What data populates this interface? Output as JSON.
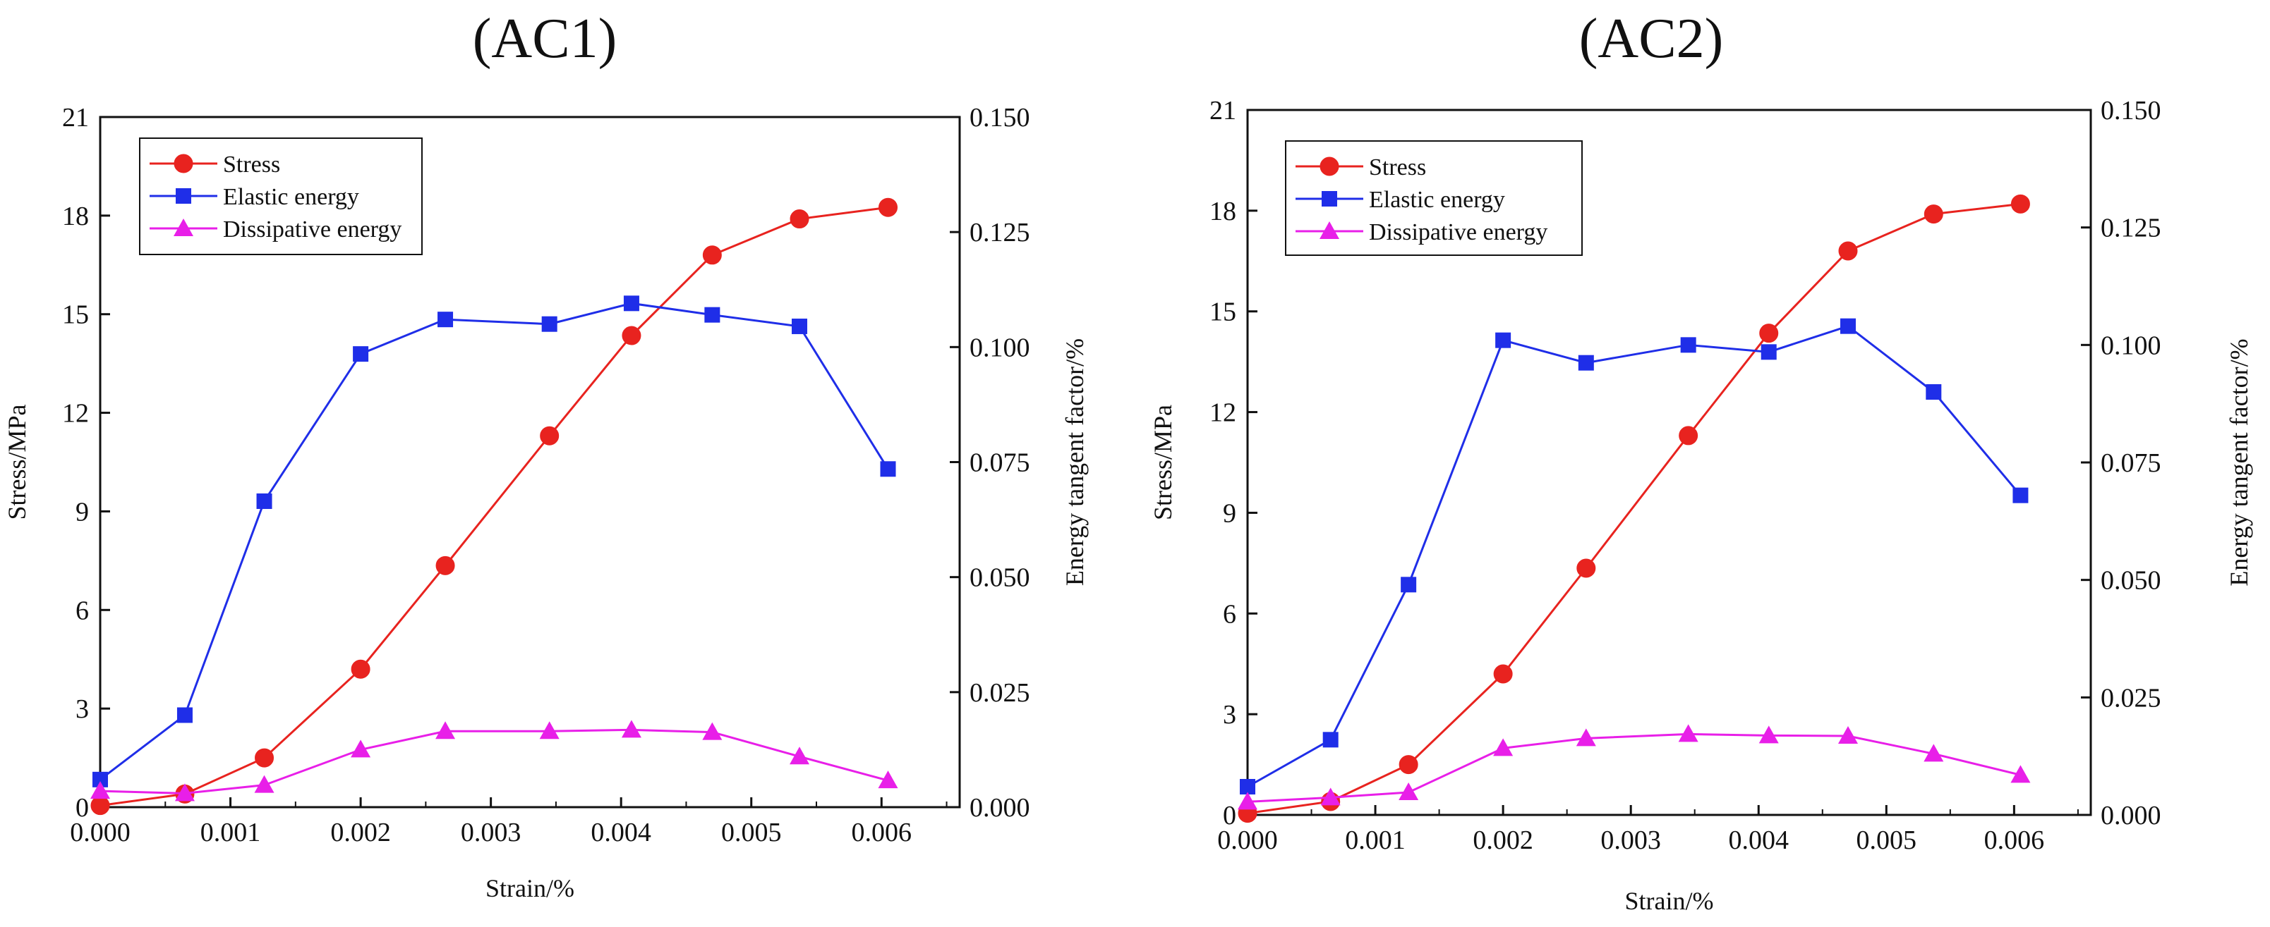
{
  "chart_data": [
    {
      "type": "line",
      "title": "(AC1)",
      "xlabel": "Strain/%",
      "ylabel": "Stress/MPa",
      "y2label": "Energy tangent factor/%",
      "xlim": [
        0,
        0.0066
      ],
      "ylim": [
        0,
        21
      ],
      "y2lim": [
        0,
        0.15
      ],
      "xticks": [
        "0.000",
        "0.001",
        "0.002",
        "0.003",
        "0.004",
        "0.005",
        "0.006"
      ],
      "yticks": [
        "0",
        "3",
        "6",
        "9",
        "12",
        "15",
        "18",
        "21"
      ],
      "y2ticks": [
        "0.000",
        "0.025",
        "0.050",
        "0.075",
        "0.100",
        "0.125",
        "0.150"
      ],
      "legend_position": "top-left",
      "series": [
        {
          "name": "Stress",
          "axis": "left",
          "color": "#e8231f",
          "marker": "circle",
          "x": [
            0,
            0.00065,
            0.00126,
            0.002,
            0.00265,
            0.00345,
            0.00408,
            0.0047,
            0.00537,
            0.00605
          ],
          "values": [
            0.05,
            0.4,
            1.5,
            4.2,
            7.35,
            11.3,
            14.35,
            16.8,
            17.9,
            18.25
          ]
        },
        {
          "name": "Elastic energy",
          "axis": "right",
          "color": "#1f2ee8",
          "marker": "square",
          "x": [
            0,
            0.00065,
            0.00126,
            0.002,
            0.00265,
            0.00345,
            0.00408,
            0.0047,
            0.00537,
            0.00605
          ],
          "values": [
            0.006,
            0.02,
            0.0665,
            0.0985,
            0.106,
            0.105,
            0.1095,
            0.107,
            0.1045,
            0.0735
          ]
        },
        {
          "name": "Dissipative energy",
          "axis": "right",
          "color": "#e81fe8",
          "marker": "triangle",
          "x": [
            0,
            0.00065,
            0.00126,
            0.002,
            0.00265,
            0.00345,
            0.00408,
            0.0047,
            0.00537,
            0.00605
          ],
          "values": [
            0.0035,
            0.003,
            0.0048,
            0.0125,
            0.0165,
            0.0165,
            0.0168,
            0.0163,
            0.011,
            0.0058
          ]
        }
      ]
    },
    {
      "type": "line",
      "title": "(AC2)",
      "xlabel": "Strain/%",
      "ylabel": "Stress/MPa",
      "y2label": "Energy tangent factor/%",
      "xlim": [
        0,
        0.0066
      ],
      "ylim": [
        0,
        21
      ],
      "y2lim": [
        0,
        0.15
      ],
      "xticks": [
        "0.000",
        "0.001",
        "0.002",
        "0.003",
        "0.004",
        "0.005",
        "0.006"
      ],
      "yticks": [
        "0",
        "3",
        "6",
        "9",
        "12",
        "15",
        "18",
        "21"
      ],
      "y2ticks": [
        "0.000",
        "0.025",
        "0.050",
        "0.075",
        "0.100",
        "0.125",
        "0.150"
      ],
      "legend_position": "top-left",
      "series": [
        {
          "name": "Stress",
          "axis": "left",
          "color": "#e8231f",
          "marker": "circle",
          "x": [
            0,
            0.00065,
            0.00126,
            0.002,
            0.00265,
            0.00345,
            0.00408,
            0.0047,
            0.00537,
            0.00605
          ],
          "values": [
            0.05,
            0.4,
            1.5,
            4.2,
            7.35,
            11.3,
            14.35,
            16.8,
            17.9,
            18.2
          ]
        },
        {
          "name": "Elastic energy",
          "axis": "right",
          "color": "#1f2ee8",
          "marker": "square",
          "x": [
            0,
            0.00065,
            0.00126,
            0.002,
            0.00265,
            0.00345,
            0.00408,
            0.0047,
            0.00537,
            0.00605
          ],
          "values": [
            0.006,
            0.016,
            0.049,
            0.101,
            0.0962,
            0.1,
            0.0985,
            0.104,
            0.09,
            0.068
          ]
        },
        {
          "name": "Dissipative energy",
          "axis": "right",
          "color": "#e81fe8",
          "marker": "triangle",
          "x": [
            0,
            0.00065,
            0.00126,
            0.002,
            0.00265,
            0.00345,
            0.00408,
            0.0047,
            0.00537,
            0.00605
          ],
          "values": [
            0.0028,
            0.0037,
            0.0048,
            0.0142,
            0.0163,
            0.0172,
            0.0169,
            0.0168,
            0.013,
            0.0085
          ]
        }
      ]
    }
  ]
}
